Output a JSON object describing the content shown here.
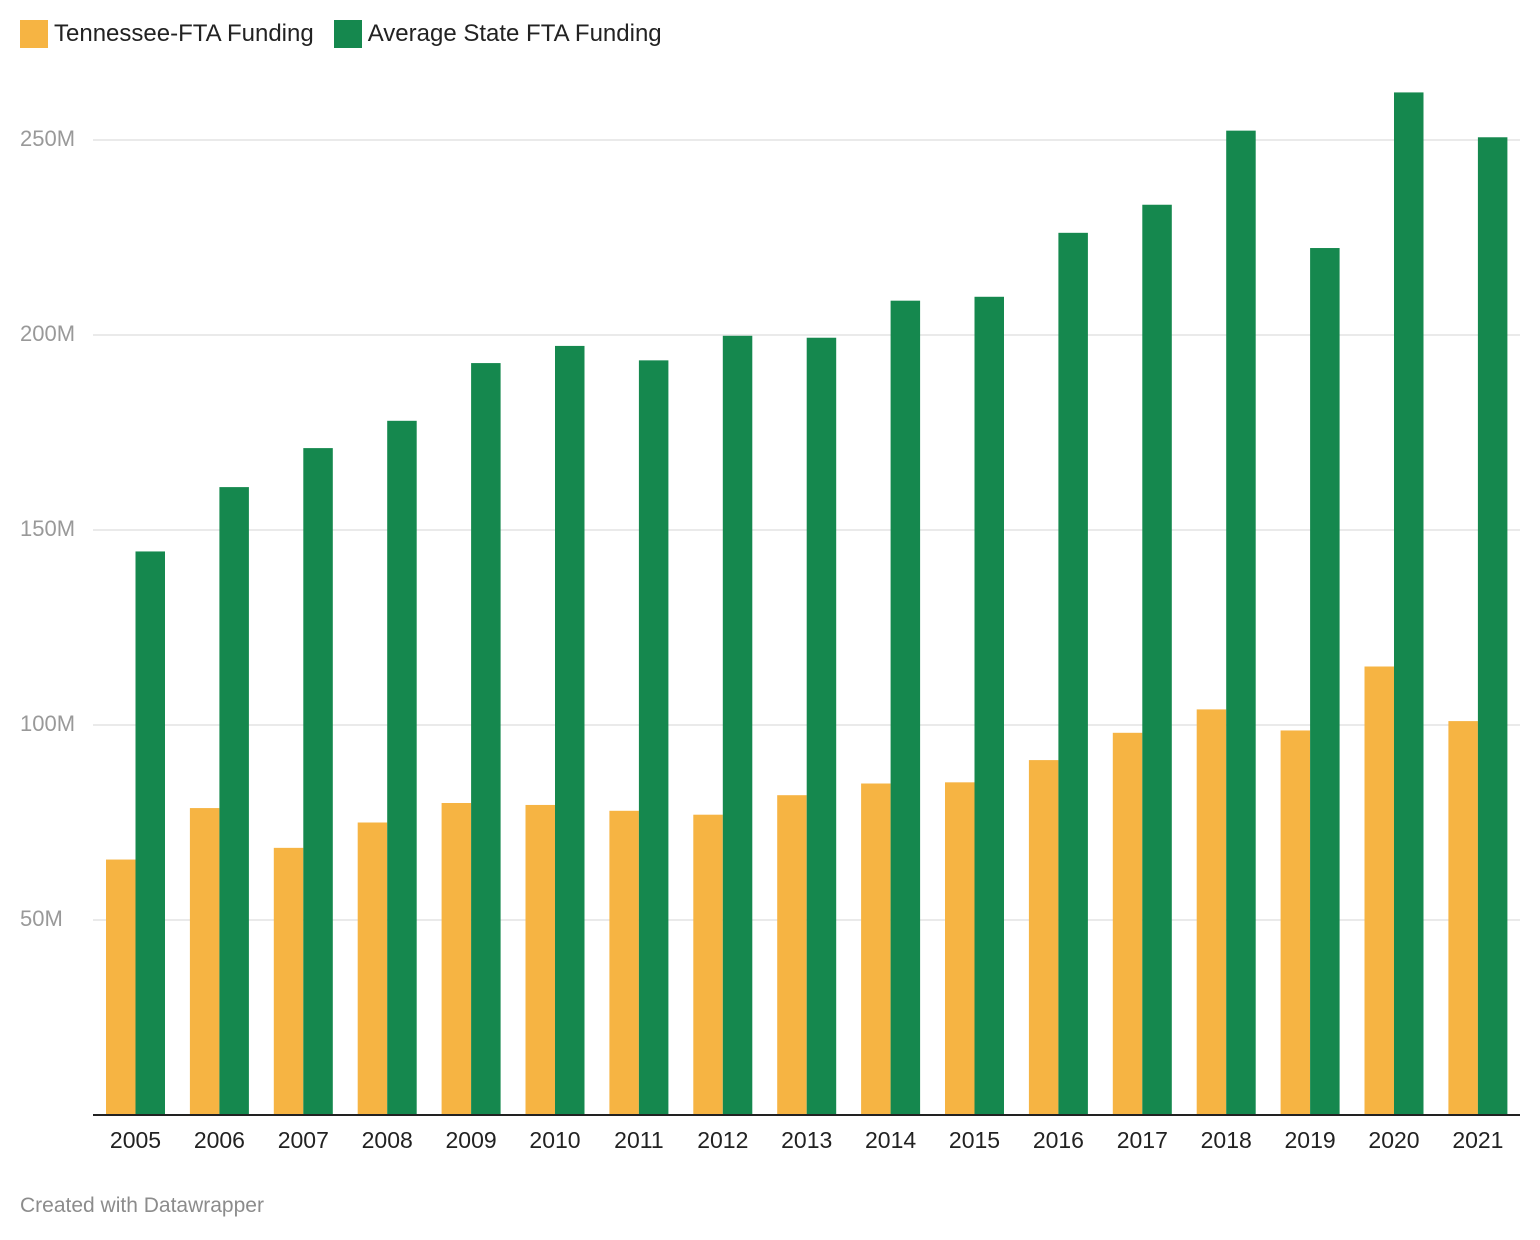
{
  "legend": [
    {
      "label": "Tennessee-FTA Funding",
      "color": "#f6b443"
    },
    {
      "label": "Average State FTA Funding",
      "color": "#15884e"
    }
  ],
  "credit": "Created with Datawrapper",
  "chart_data": {
    "type": "bar",
    "title": "",
    "xlabel": "",
    "ylabel": "",
    "ylim": [
      0,
      260000000
    ],
    "yticks": [
      50000000,
      100000000,
      150000000,
      200000000,
      250000000
    ],
    "ytick_labels": [
      "50M",
      "100M",
      "150M",
      "200M",
      "250M"
    ],
    "grid": true,
    "legend_position": "top-left",
    "categories": [
      "2005",
      "2006",
      "2007",
      "2008",
      "2009",
      "2010",
      "2011",
      "2012",
      "2013",
      "2014",
      "2015",
      "2016",
      "2017",
      "2018",
      "2019",
      "2020",
      "2021"
    ],
    "series": [
      {
        "name": "Tennessee-FTA Funding",
        "color": "#f6b443",
        "values": [
          65500000,
          78700000,
          68500000,
          75000000,
          80000000,
          79500000,
          78000000,
          77000000,
          82000000,
          85000000,
          85300000,
          91000000,
          98000000,
          104000000,
          98600000,
          115000000,
          101000000
        ]
      },
      {
        "name": "Average State FTA Funding",
        "color": "#15884e",
        "values": [
          144500000,
          161000000,
          171000000,
          178000000,
          192800000,
          197200000,
          193500000,
          199800000,
          199300000,
          208800000,
          209800000,
          226200000,
          233400000,
          252400000,
          222300000,
          262200000,
          250700000
        ]
      }
    ]
  }
}
